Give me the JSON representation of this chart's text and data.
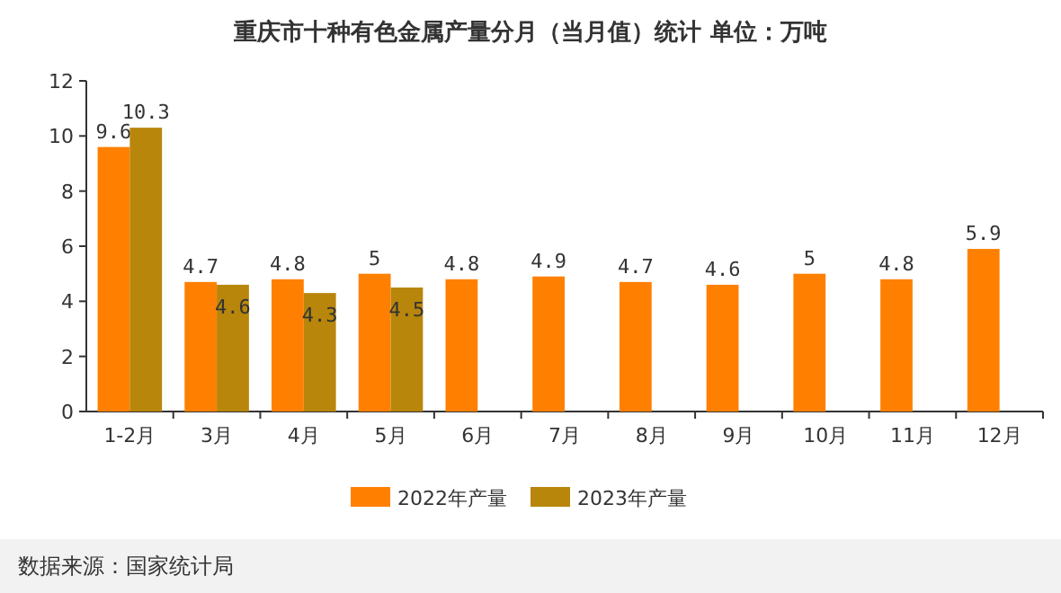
{
  "chart_data": {
    "type": "bar",
    "title": "重庆市十种有色金属产量分月（当月值）统计  单位：万吨",
    "categories": [
      "1-2月",
      "3月",
      "4月",
      "5月",
      "6月",
      "7月",
      "8月",
      "9月",
      "10月",
      "11月",
      "12月"
    ],
    "series": [
      {
        "name": "2022年产量",
        "color": "#ff8000",
        "values": [
          9.6,
          4.7,
          4.8,
          5,
          4.8,
          4.9,
          4.7,
          4.6,
          5,
          4.8,
          5.9
        ]
      },
      {
        "name": "2023年产量",
        "color": "#b8860b",
        "values": [
          10.3,
          4.6,
          4.3,
          4.5,
          null,
          null,
          null,
          null,
          null,
          null,
          null
        ]
      }
    ],
    "ylim": [
      0,
      12
    ],
    "yticks": [
      0,
      2,
      4,
      6,
      8,
      10,
      12
    ],
    "data_labels": true,
    "legend": "bottom",
    "annotations": [
      "数据来源：国家统计局"
    ]
  }
}
